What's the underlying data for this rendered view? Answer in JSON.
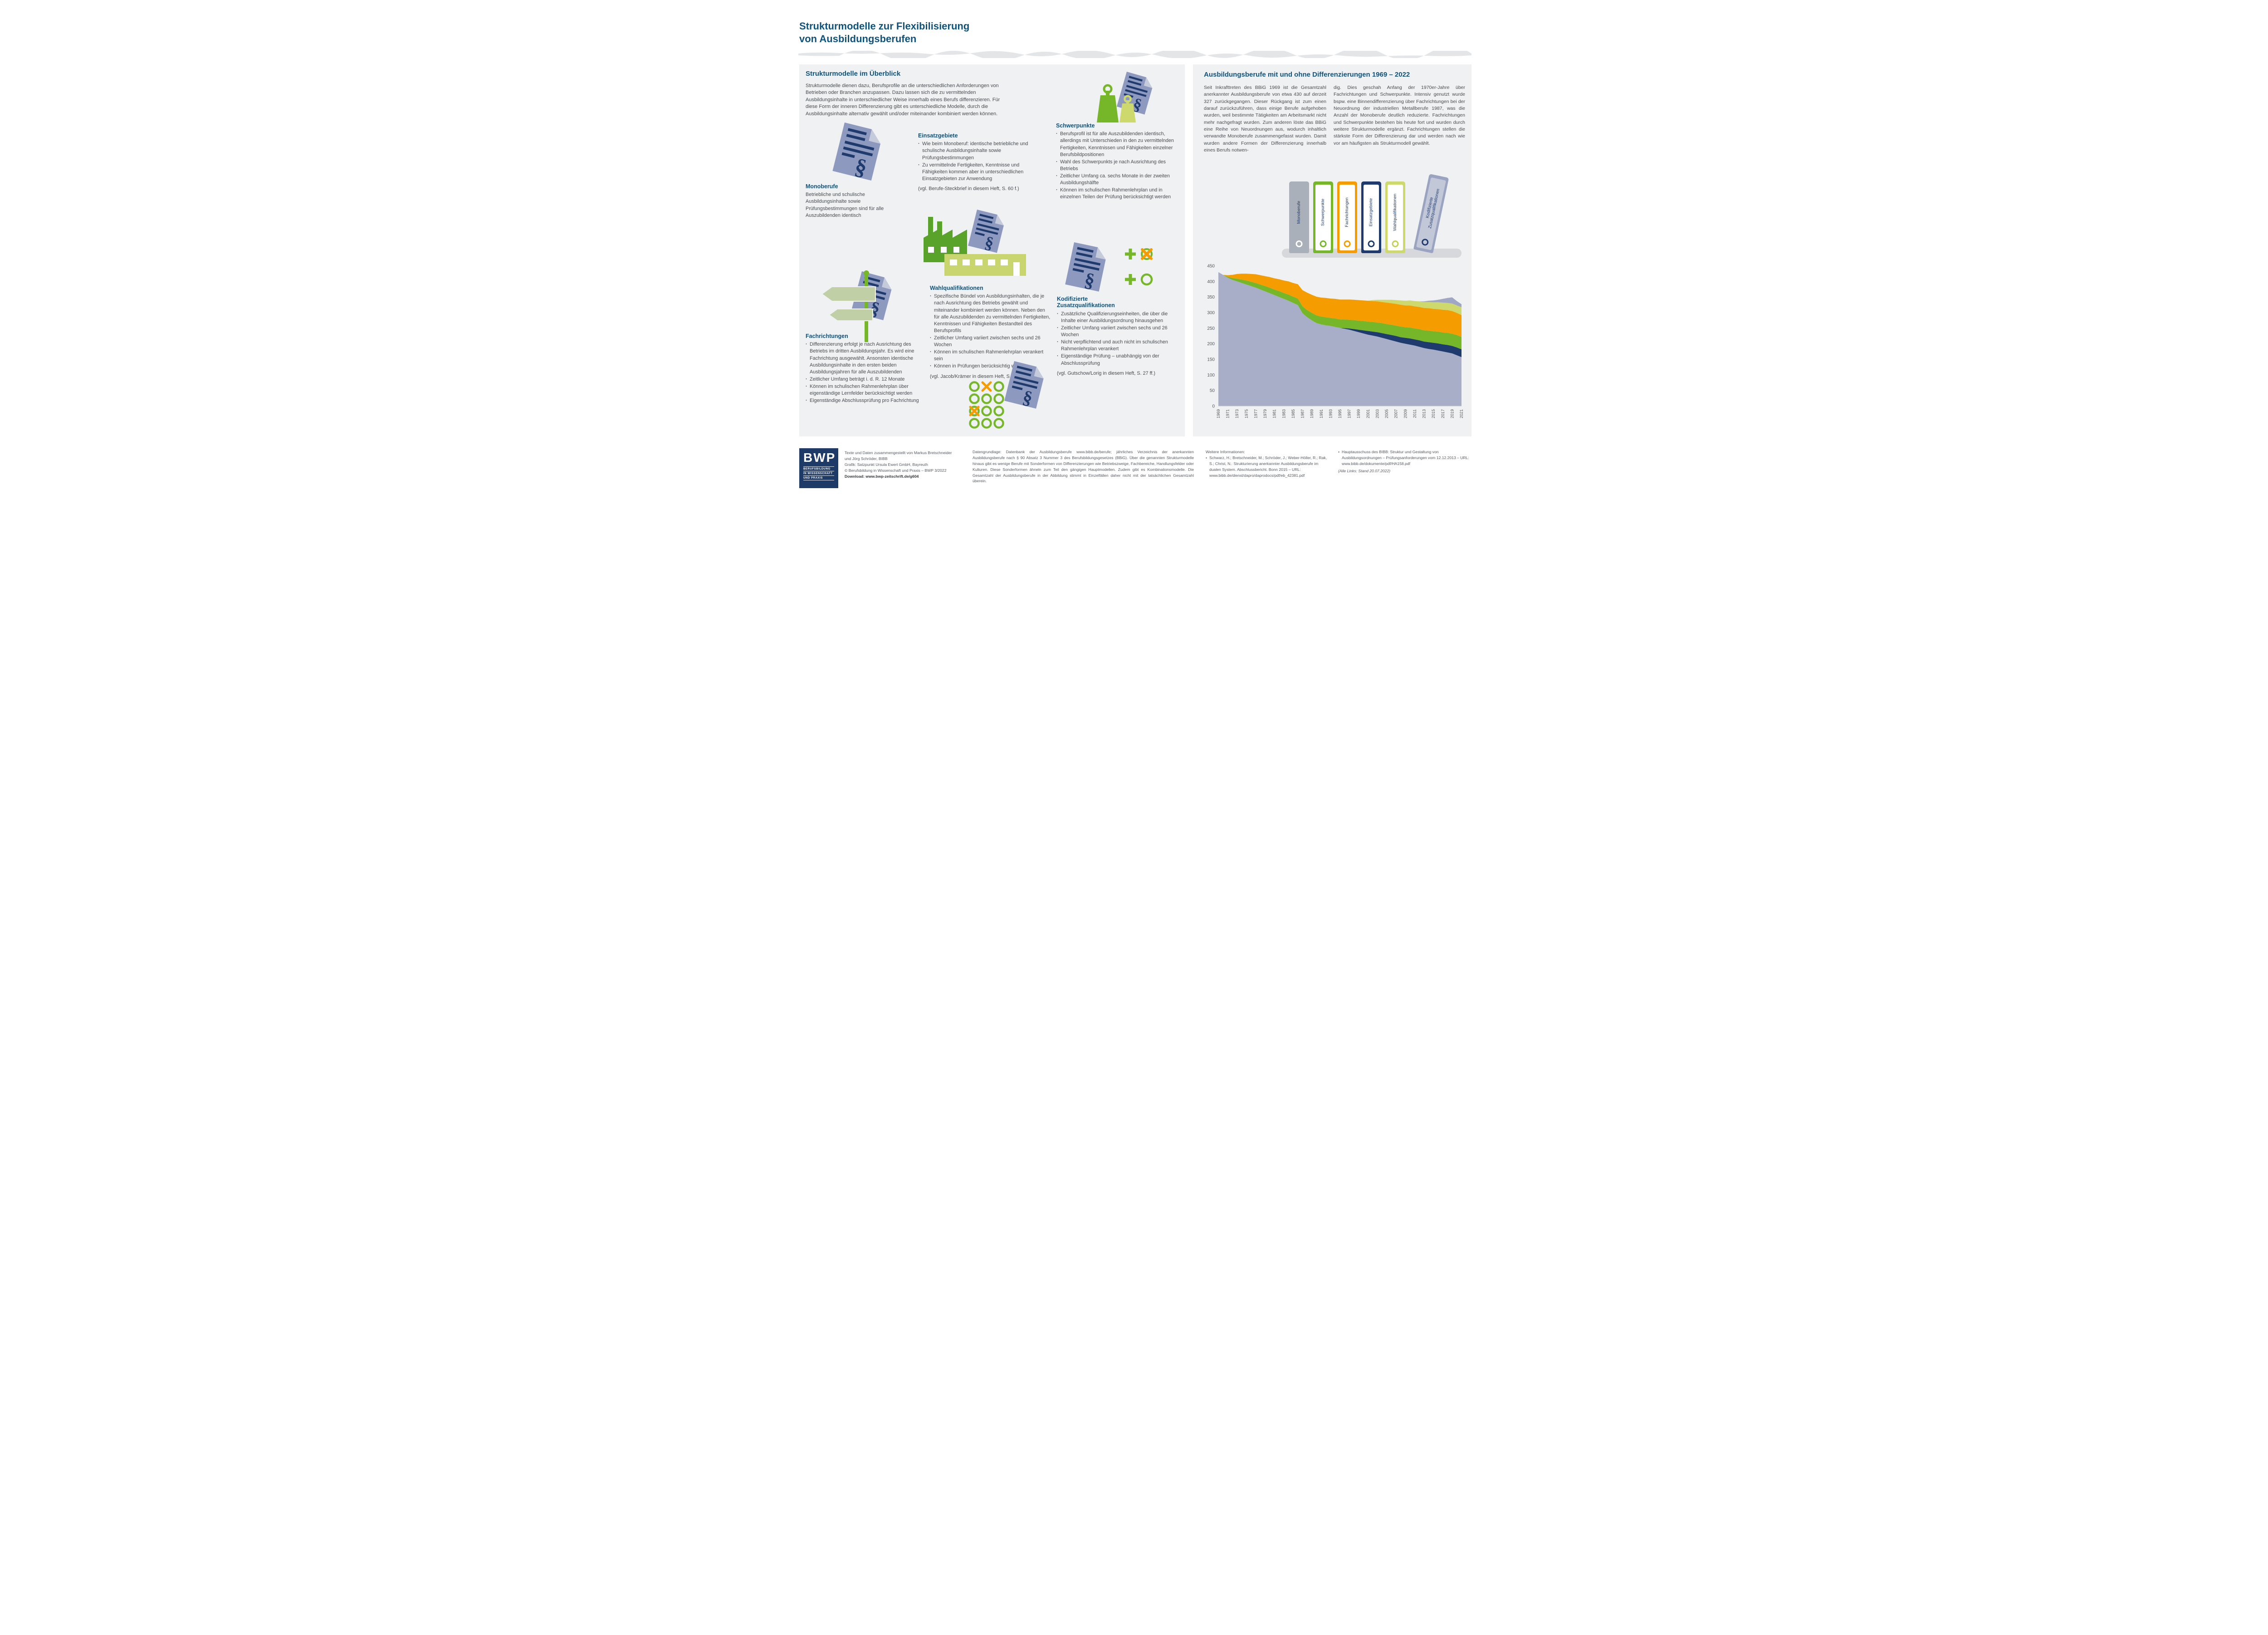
{
  "page": {
    "title_line1": "Strukturmodelle zur Flexibilisierung",
    "title_line2": "von Ausbildungsberufen"
  },
  "colors": {
    "heading_blue": "#0f537c",
    "navy": "#1f3b6e",
    "green": "#76b72a",
    "pale_green": "#cdd96c",
    "orange": "#f59c00",
    "doc_blue": "#8e99c0",
    "gray_blue": "#a8aec8",
    "panel_bg": "#f0f1f2"
  },
  "left_panel": {
    "heading": "Strukturmodelle im Überblick",
    "intro": "Strukturmodelle dienen dazu, Berufsprofile an die unterschiedlichen Anforderungen von Betrieben oder Branchen anzupassen. Dazu lassen sich die zu vermittelnden Ausbildungsinhalte in unterschiedlicher Weise innerhalb eines Berufs differenzieren. Für diese Form der inneren Differenzierung gibt es unterschiedliche Modelle, durch die Ausbildungsinhalte alternativ gewählt und/oder miteinander kombiniert werden können.",
    "monoberufe": {
      "heading": "Monoberufe",
      "body": "Betriebliche und schulische Ausbildungsinhalte sowie Prüfungsbestimmungen sind für alle Auszubildenden identisch"
    },
    "einsatzgebiete": {
      "heading": "Einsatzgebiete",
      "bullets": [
        "Wie beim Monoberuf: identische betriebliche und schulische Ausbildungsinhalte sowie Prüfungsbestimmungen",
        "Zu vermittelnde Fertigkeiten, Kenntnisse und Fähigkeiten kommen aber in unterschiedlichen Einsatzgebieten zur Anwendung"
      ],
      "reference": "(vgl. Berufe-Steckbrief in diesem Heft, S. 60 f.)"
    },
    "schwerpunkte": {
      "heading": "Schwerpunkte",
      "bullets": [
        "Berufsprofil ist für alle Auszubildenden identisch, allerdings mit Unterschieden in den zu vermittelnden Fertigkeiten, Kenntnissen und Fähigkeiten einzelner Berufsbildpositionen",
        "Wahl des Schwerpunkts je nach Ausrichtung des Betriebs",
        "Zeitlicher Umfang ca. sechs Monate in der zweiten Ausbildungshälfte",
        "Können im schulischen Rahmenlehrplan und in einzelnen Teilen der Prüfung berücksichtigt werden"
      ]
    },
    "fachrichtungen": {
      "heading": "Fachrichtungen",
      "bullets": [
        "Differenzierung erfolgt je nach Ausrichtung des Betriebs im dritten Ausbildungsjahr. Es wird eine Fachrichtung ausgewählt. Ansonsten identische Ausbildungsinhalte in den ersten beiden Ausbildungsjahren für alle Auszubildenden",
        "Zeitlicher Umfang beträgt i. d. R. 12 Monate",
        "Können im schulischen Rahmenlehrplan über eigenständige Lernfelder berücksichtigt werden",
        "Eigenständige Abschlussprüfung pro Fachrichtung"
      ]
    },
    "wahlqualifikationen": {
      "heading": "Wahlqualifikationen",
      "bullets": [
        "Spezifische Bündel von Ausbildungsinhalten, die je nach Ausrichtung des Betriebs gewählt und miteinander kombiniert werden können. Neben den für alle Auszubildenden zu vermittelnden Fertigkeiten, Kenntnissen und Fähigkeiten Bestandteil des Berufsprofils",
        "Zeitlicher Umfang variiert zwischen sechs und 26 Wochen",
        "Können im schulischen Rahmenlehrplan verankert sein",
        "Können in Prüfungen berücksichtig werden"
      ],
      "reference": "(vgl. Jacob/Krämer in diesem Heft, S. 31 ff.)"
    },
    "zusatzqualifikationen": {
      "heading_line1": "Kodifizierte",
      "heading_line2": "Zusatzqualifikationen",
      "bullets": [
        "Zusätzliche Qualifizierungseinheiten, die über die Inhalte einer Ausbildungsordnung hinausgehen",
        "Zeitlicher Umfang variiert zwischen sechs und 26 Wochen",
        "Nicht verpflichtend und auch nicht im schulischen Rahmenlehrplan verankert",
        "Eigenständige Prüfung – unabhängig von der Abschlussprüfung"
      ],
      "reference": "(vgl. Gutschow/Lorig in diesem Heft, S. 27 ff.)"
    }
  },
  "right_panel": {
    "heading": "Ausbildungsberufe mit und ohne Differenzierungen 1969 – 2022",
    "col1": "Seit Inkrafttreten des BBiG 1969 ist die Gesamtzahl anerkannter Ausbildungsberufe von etwa 430 auf derzeit 327 zurückgegangen. Dieser Rückgang ist zum einen darauf zurückzuführen, dass einige Berufe aufgehoben wurden, weil bestimmte Tätigkeiten am Arbeitsmarkt nicht mehr nachgefragt wurden. Zum anderen löste das BBiG eine Reihe von Neuordnungen aus, wodurch inhaltlich verwandte Monoberufe zusammengefasst wurden. Damit wurden andere Formen der Differenzierung innerhalb eines Berufs notwen-",
    "col2": "dig. Dies geschah Anfang der 1970er-Jahre über Fachrichtungen und Schwerpunkte. Intensiv genutzt wurde bspw. eine Binnendifferenzierung über Fachrichtungen bei der Neuordnung der industriellen Metallberufe 1987, was die Anzahl der Monoberufe deutlich reduzierte. Fachrichtungen und Schwerpunkte bestehen bis heute fort und wurden durch weitere Strukturmodelle ergänzt. Fachrichtungen stellen die stärkste Form der Differenzierung dar und werden nach wie vor am häufigsten als Strukturmodell gewählt.",
    "binders": [
      {
        "label": "Monoberufe",
        "body": "#aab0b9",
        "stripe": "#aab0b9",
        "ring": "#ffffff",
        "tilt": false
      },
      {
        "label": "Schwerpunkte",
        "body": "#76b72a",
        "stripe": "#ffffff",
        "ring": "#76b72a",
        "tilt": false
      },
      {
        "label": "Fachrichtungen",
        "body": "#f59c00",
        "stripe": "#ffffff",
        "ring": "#f59c00",
        "tilt": false
      },
      {
        "label": "Einsatzgebiete",
        "body": "#1f3b6e",
        "stripe": "#ffffff",
        "ring": "#1f3b6e",
        "tilt": false
      },
      {
        "label": "Wahlqualifikationen",
        "body": "#cdd96c",
        "stripe": "#ffffff",
        "ring": "#c3d159",
        "tilt": false
      },
      {
        "label": "Kodifizierte Zusatzqualifikationen",
        "body": "#9aa3c0",
        "stripe": "#c2c8d8",
        "ring": "#1f3b6e",
        "tilt": true
      }
    ]
  },
  "chart_data": {
    "type": "area",
    "stacked": true,
    "title": "Ausbildungsberufe mit und ohne Differenzierungen 1969 – 2022",
    "xlabel": "",
    "ylabel": "",
    "ylim": [
      0,
      450
    ],
    "ytick_step": 50,
    "xtick_step": 2,
    "grid": false,
    "legend_position": "binder-illustration-above",
    "years": [
      1969,
      1970,
      1971,
      1972,
      1973,
      1974,
      1975,
      1976,
      1977,
      1978,
      1979,
      1980,
      1981,
      1982,
      1983,
      1984,
      1985,
      1986,
      1987,
      1988,
      1989,
      1990,
      1991,
      1992,
      1993,
      1994,
      1995,
      1996,
      1997,
      1998,
      1999,
      2000,
      2001,
      2002,
      2003,
      2004,
      2005,
      2006,
      2007,
      2008,
      2009,
      2010,
      2011,
      2012,
      2013,
      2014,
      2015,
      2016,
      2017,
      2018,
      2019,
      2020,
      2021
    ],
    "series": [
      {
        "name": "Monoberufe",
        "key": "monoberufe",
        "color": "#a8aec8",
        "values": [
          430,
          421,
          412,
          405,
          400,
          395,
          390,
          385,
          380,
          374,
          368,
          362,
          356,
          350,
          344,
          338,
          331,
          324,
          298,
          285,
          275,
          266,
          262,
          259,
          257,
          254,
          251,
          248,
          245,
          241,
          237,
          233,
          229,
          226,
          223,
          219,
          215,
          211,
          207,
          203,
          200,
          197,
          194,
          190,
          186,
          183,
          181,
          178,
          175,
          172,
          169,
          163,
          157
        ]
      },
      {
        "name": "Einsatzgebiete",
        "key": "einsatzgebiete",
        "color": "#1f3b6e",
        "values": [
          0,
          0,
          0,
          0,
          0,
          0,
          0,
          0,
          0,
          0,
          0,
          0,
          0,
          0,
          0,
          0,
          0,
          0,
          0,
          0,
          0,
          0,
          0,
          0,
          0,
          0,
          0,
          2,
          4,
          6,
          8,
          10,
          12,
          13,
          14,
          15,
          16,
          17,
          18,
          18,
          19,
          20,
          20,
          21,
          21,
          22,
          22,
          23,
          23,
          24,
          24,
          25,
          25
        ]
      },
      {
        "name": "Schwerpunkte",
        "key": "schwerpunkte",
        "color": "#76b72a",
        "values": [
          0,
          0,
          3,
          6,
          9,
          11,
          13,
          14,
          15,
          16,
          17,
          18,
          18,
          19,
          19,
          20,
          20,
          21,
          22,
          23,
          24,
          25,
          25,
          26,
          26,
          27,
          27,
          28,
          28,
          29,
          29,
          30,
          30,
          31,
          31,
          32,
          32,
          33,
          33,
          34,
          34,
          35,
          35,
          36,
          36,
          37,
          37,
          38,
          38,
          39,
          39,
          40,
          40
        ]
      },
      {
        "name": "Fachrichtungen",
        "key": "fachrichtungen",
        "color": "#f59c00",
        "values": [
          0,
          0,
          5,
          10,
          15,
          19,
          22,
          25,
          28,
          30,
          32,
          34,
          36,
          38,
          40,
          42,
          44,
          46,
          52,
          56,
          58,
          60,
          61,
          62,
          62,
          63,
          64,
          64,
          65,
          65,
          66,
          66,
          67,
          67,
          68,
          68,
          69,
          69,
          70,
          70,
          70,
          71,
          71,
          71,
          72,
          72,
          72,
          72,
          73,
          73,
          73,
          71,
          70
        ]
      },
      {
        "name": "Wahlqualifikationen",
        "key": "wahlqualifikationen",
        "color": "#cdd96c",
        "values": [
          0,
          0,
          0,
          0,
          0,
          0,
          0,
          0,
          0,
          0,
          0,
          0,
          0,
          0,
          0,
          0,
          0,
          0,
          0,
          0,
          0,
          0,
          0,
          0,
          0,
          0,
          0,
          0,
          0,
          0,
          0,
          0,
          0,
          3,
          5,
          7,
          9,
          11,
          12,
          14,
          15,
          16,
          17,
          18,
          19,
          20,
          21,
          22,
          23,
          23,
          24,
          24,
          25
        ]
      },
      {
        "name": "Kodifizierte Zusatzqualifikationen",
        "key": "kodifizierte-zusatzqualifikationen",
        "color": "#9fa7c4",
        "values": [
          0,
          0,
          0,
          0,
          0,
          0,
          0,
          0,
          0,
          0,
          0,
          0,
          0,
          0,
          0,
          0,
          0,
          0,
          0,
          0,
          0,
          0,
          0,
          0,
          0,
          0,
          0,
          0,
          0,
          0,
          0,
          0,
          0,
          0,
          0,
          0,
          0,
          0,
          0,
          0,
          0,
          0,
          0,
          0,
          2,
          4,
          6,
          8,
          12,
          16,
          20,
          14,
          10
        ]
      }
    ]
  },
  "footer": {
    "logo": {
      "acronym": "BWP",
      "lines": [
        "BERUFSBILDUNG",
        "IN WISSENSCHAFT",
        "UND PRAXIS"
      ]
    },
    "credits": [
      "Texte und Daten zusammengestellt von Markus Bretschneider",
      "und Jörg Schröder, BIBB",
      "Grafik: Satzpunkt Ursula Ewert GmbH, Bayreuth",
      "© Berufsbildung in Wissenschaft und Praxis – BWP 3/2022",
      "Download: www.bwp-zeitschrift.de/g604"
    ],
    "datengrundlage": "Datengrundlage: Datenbank der Ausbildungsberufe www.bibb.de/berufe; jährliches Verzeichnis der anerkannten Ausbildungsberufe nach § 90 Absatz 3 Nummer 3 des Berufsbildungsgesetzes (BBiG). Über die genannten Strukturmodelle hinaus gibt es wenige Berufe mit Sonderformen von Differenzierungen wie Betriebszweige, Fachbereiche, Handlungsfelder oder Kulturen. Diese Sonderformen ähneln zum Teil den gängigen Hauptmodellen. Zudem gibt es Kombinationsmodelle. Die Gesamtzahl der Ausbildungsberufe in der Abbildung stimmt in Einzelfällen daher nicht mit der tatsächlichen Gesamtzahl überein.",
    "weitere_heading": "Weitere Informationen:",
    "weitere_item": "Schwarz, H.; Bretschneider, M.; Schröder, J.; Weber-Höller, R.; Rak, S.; Christ, N.: Strukturierung anerkannter Ausbildungsberufe im dualen System. Abschlussbericht. Bonn 2015 – URL: www.bibb.de/dienst/dapro/daprodocs/pdf/eb_42381.pdf",
    "right_item": "Hauptausschuss des BIBB: Struktur und Gestaltung von Ausbildungsordnungen – Prüfungsanforderungen vom 12.12.2013 – URL: www.bibb.de/dokumente/pdf/HA158.pdf",
    "links_note": "(Alle Links: Stand 20.07.2022)"
  }
}
